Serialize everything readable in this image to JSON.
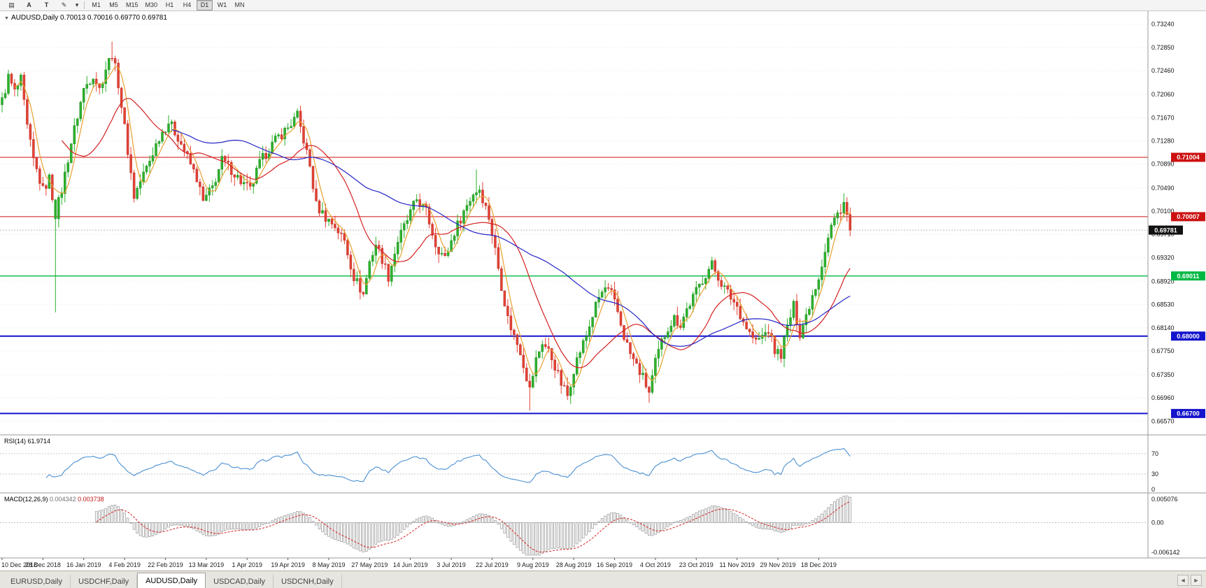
{
  "toolbar": {
    "icons": [
      {
        "name": "chart-window-icon",
        "glyph": "▤"
      },
      {
        "name": "arrow-tool-icon",
        "glyph": "A"
      },
      {
        "name": "text-tool-icon",
        "glyph": "T"
      },
      {
        "name": "draw-tool-icon",
        "glyph": "✎"
      },
      {
        "name": "dropdown-arrow-icon",
        "glyph": "▾"
      }
    ],
    "timeframes": [
      "M1",
      "M5",
      "M15",
      "M30",
      "H1",
      "H4",
      "D1",
      "W1",
      "MN"
    ],
    "active_timeframe": "D1"
  },
  "chart_header": {
    "symbol": "AUDUSD,Daily",
    "open": "0.70013",
    "high": "0.70016",
    "low": "0.69770",
    "close": "0.69781"
  },
  "price_axis": {
    "labels": [
      "0.73240",
      "0.72850",
      "0.72460",
      "0.72060",
      "0.71670",
      "0.71280",
      "0.70890",
      "0.70490",
      "0.70100",
      "0.69710",
      "0.69320",
      "0.68920",
      "0.68530",
      "0.68140",
      "0.67750",
      "0.67350",
      "0.66960",
      "0.66570"
    ]
  },
  "rsi_panel": {
    "name": "RSI(14)",
    "value": "61.9714",
    "axis_labels": [
      "70",
      "30",
      "0"
    ],
    "levels": [
      70,
      30,
      0
    ]
  },
  "macd_panel": {
    "name": "MACD(12,26,9)",
    "main_value": "0.004342",
    "signal_value": "0.003738",
    "axis_labels": [
      "0.005076",
      "0.00",
      "-0.006142"
    ]
  },
  "date_axis": {
    "labels": [
      "10 Dec 2018",
      "28 Dec 2018",
      "16 Jan 2019",
      "4 Feb 2019",
      "22 Feb 2019",
      "13 Mar 2019",
      "1 Apr 2019",
      "19 Apr 2019",
      "8 May 2019",
      "27 May 2019",
      "14 Jun 2019",
      "3 Jul 2019",
      "22 Jul 2019",
      "9 Aug 2019",
      "28 Aug 2019",
      "16 Sep 2019",
      "4 Oct 2019",
      "23 Oct 2019",
      "11 Nov 2019",
      "29 Nov 2019",
      "18 Dec 2019"
    ]
  },
  "tabs": {
    "items": [
      "EURUSD,Daily",
      "USDCHF,Daily",
      "AUDUSD,Daily",
      "USDCAD,Daily",
      "USDCNH,Daily"
    ],
    "active_index": 2,
    "scroll_left_icon": "◄",
    "scroll_right_icon": "►"
  },
  "chart_data": {
    "type": "candlestick",
    "symbol": "AUDUSD",
    "timeframe": "Daily",
    "bar_count": 271,
    "bars_per_label": 13,
    "ylim": [
      0.6634,
      0.7346
    ],
    "x_labels": [
      "10 Dec 2018",
      "28 Dec 2018",
      "16 Jan 2019",
      "4 Feb 2019",
      "22 Feb 2019",
      "13 Mar 2019",
      "1 Apr 2019",
      "19 Apr 2019",
      "8 May 2019",
      "27 May 2019",
      "14 Jun 2019",
      "3 Jul 2019",
      "22 Jul 2019",
      "9 Aug 2019",
      "28 Aug 2019",
      "16 Sep 2019",
      "4 Oct 2019",
      "23 Oct 2019",
      "11 Nov 2019",
      "29 Nov 2019",
      "18 Dec 2019"
    ],
    "price_anchors": [
      [
        0,
        0.7195
      ],
      [
        2,
        0.7235
      ],
      [
        4,
        0.721
      ],
      [
        6,
        0.723
      ],
      [
        8,
        0.715
      ],
      [
        10,
        0.7095
      ],
      [
        13,
        0.7045
      ],
      [
        15,
        0.7065
      ],
      [
        17,
        0.7005
      ],
      [
        19,
        0.7045
      ],
      [
        22,
        0.7125
      ],
      [
        26,
        0.7215
      ],
      [
        29,
        0.724
      ],
      [
        31,
        0.7215
      ],
      [
        33,
        0.725
      ],
      [
        35,
        0.7275
      ],
      [
        37,
        0.7225
      ],
      [
        39,
        0.715
      ],
      [
        42,
        0.7035
      ],
      [
        44,
        0.706
      ],
      [
        47,
        0.7095
      ],
      [
        50,
        0.7135
      ],
      [
        53,
        0.716
      ],
      [
        56,
        0.7135
      ],
      [
        59,
        0.71
      ],
      [
        62,
        0.7065
      ],
      [
        64,
        0.7025
      ],
      [
        67,
        0.705
      ],
      [
        70,
        0.7095
      ],
      [
        73,
        0.708
      ],
      [
        76,
        0.706
      ],
      [
        79,
        0.7045
      ],
      [
        82,
        0.709
      ],
      [
        85,
        0.7115
      ],
      [
        88,
        0.7135
      ],
      [
        91,
        0.715
      ],
      [
        94,
        0.717
      ],
      [
        96,
        0.713
      ],
      [
        98,
        0.7085
      ],
      [
        100,
        0.702
      ],
      [
        103,
        0.7
      ],
      [
        106,
        0.6985
      ],
      [
        109,
        0.696
      ],
      [
        112,
        0.69
      ],
      [
        115,
        0.687
      ],
      [
        117,
        0.6925
      ],
      [
        119,
        0.6955
      ],
      [
        121,
        0.693
      ],
      [
        123,
        0.69
      ],
      [
        126,
        0.696
      ],
      [
        129,
        0.6995
      ],
      [
        132,
        0.703
      ],
      [
        135,
        0.701
      ],
      [
        138,
        0.6955
      ],
      [
        141,
        0.693
      ],
      [
        144,
        0.6975
      ],
      [
        147,
        0.701
      ],
      [
        150,
        0.704
      ],
      [
        152,
        0.7048
      ],
      [
        155,
        0.7
      ],
      [
        157,
        0.6945
      ],
      [
        159,
        0.6885
      ],
      [
        161,
        0.683
      ],
      [
        163,
        0.68
      ],
      [
        165,
        0.6775
      ],
      [
        168,
        0.671
      ],
      [
        170,
        0.676
      ],
      [
        172,
        0.679
      ],
      [
        174,
        0.6775
      ],
      [
        176,
        0.675
      ],
      [
        178,
        0.672
      ],
      [
        180,
        0.67
      ],
      [
        182,
        0.6745
      ],
      [
        184,
        0.6775
      ],
      [
        186,
        0.68
      ],
      [
        188,
        0.6835
      ],
      [
        190,
        0.6865
      ],
      [
        192,
        0.688
      ],
      [
        194,
        0.687
      ],
      [
        196,
        0.684
      ],
      [
        198,
        0.68
      ],
      [
        200,
        0.677
      ],
      [
        202,
        0.675
      ],
      [
        204,
        0.673
      ],
      [
        206,
        0.6705
      ],
      [
        208,
        0.6755
      ],
      [
        210,
        0.679
      ],
      [
        212,
        0.6815
      ],
      [
        214,
        0.683
      ],
      [
        216,
        0.682
      ],
      [
        218,
        0.6845
      ],
      [
        220,
        0.6865
      ],
      [
        222,
        0.6885
      ],
      [
        224,
        0.6905
      ],
      [
        226,
        0.692
      ],
      [
        228,
        0.69
      ],
      [
        230,
        0.688
      ],
      [
        232,
        0.6865
      ],
      [
        234,
        0.685
      ],
      [
        236,
        0.6825
      ],
      [
        238,
        0.6805
      ],
      [
        240,
        0.679
      ],
      [
        242,
        0.68
      ],
      [
        244,
        0.681
      ],
      [
        246,
        0.6775
      ],
      [
        248,
        0.677
      ],
      [
        250,
        0.6815
      ],
      [
        252,
        0.685
      ],
      [
        254,
        0.6805
      ],
      [
        256,
        0.6835
      ],
      [
        258,
        0.687
      ],
      [
        260,
        0.69
      ],
      [
        262,
        0.6945
      ],
      [
        264,
        0.6985
      ],
      [
        266,
        0.7005
      ],
      [
        268,
        0.7025
      ],
      [
        270,
        0.69781
      ]
    ],
    "special_bars": {
      "17": {
        "low": 0.684,
        "up": true
      },
      "35": {
        "high": 0.7295
      },
      "151": {
        "high": 0.708
      },
      "168": {
        "low": 0.6675
      },
      "206": {
        "low": 0.6688
      },
      "268": {
        "high": 0.704
      }
    },
    "last_close": 0.69781,
    "current_price": {
      "value": 0.69781,
      "label": "0.69781"
    },
    "hlines": [
      {
        "value": 0.71004,
        "label": "0.71004",
        "color": "#CC1111",
        "width": 1
      },
      {
        "value": 0.70007,
        "label": "0.70007",
        "color": "#CC1111",
        "width": 1
      },
      {
        "value": 0.69011,
        "label": "0.69011",
        "color": "#00B844",
        "width": 1.4
      },
      {
        "value": 0.68,
        "label": "0.68000",
        "color": "#1414CC",
        "width": 2
      },
      {
        "value": 0.667,
        "label": "0.66700",
        "color": "#1414CC",
        "width": 2
      }
    ],
    "overlays": [
      {
        "name": "ma-fast",
        "period": 5,
        "color": "#E8A030"
      },
      {
        "name": "ma-mid",
        "period": 20,
        "color": "#D42020"
      },
      {
        "name": "ma-slow",
        "period": 55,
        "color": "#2626C8"
      }
    ],
    "rsi": {
      "period": 14,
      "last": 61.9714,
      "range": [
        0,
        100
      ],
      "levels": [
        70,
        30
      ]
    },
    "macd": {
      "fast": 12,
      "slow": 26,
      "signal": 9,
      "last_main": 0.004342,
      "last_signal": 0.003738,
      "range": [
        -0.006142,
        0.005076
      ]
    },
    "colors": {
      "up": "#2DB22D",
      "down": "#E34234",
      "up_edge": "#1E8A1E",
      "down_edge": "#B93028",
      "rsi": "#4A90D2",
      "macd_hist": "#9E9E9E",
      "macd_signal": "#D42020",
      "grid": "#E7E7E7",
      "axis_text": "#111111",
      "separator": "#9a9a9a",
      "current_line": "#BBBBBB",
      "current_tag": "#111111"
    }
  }
}
